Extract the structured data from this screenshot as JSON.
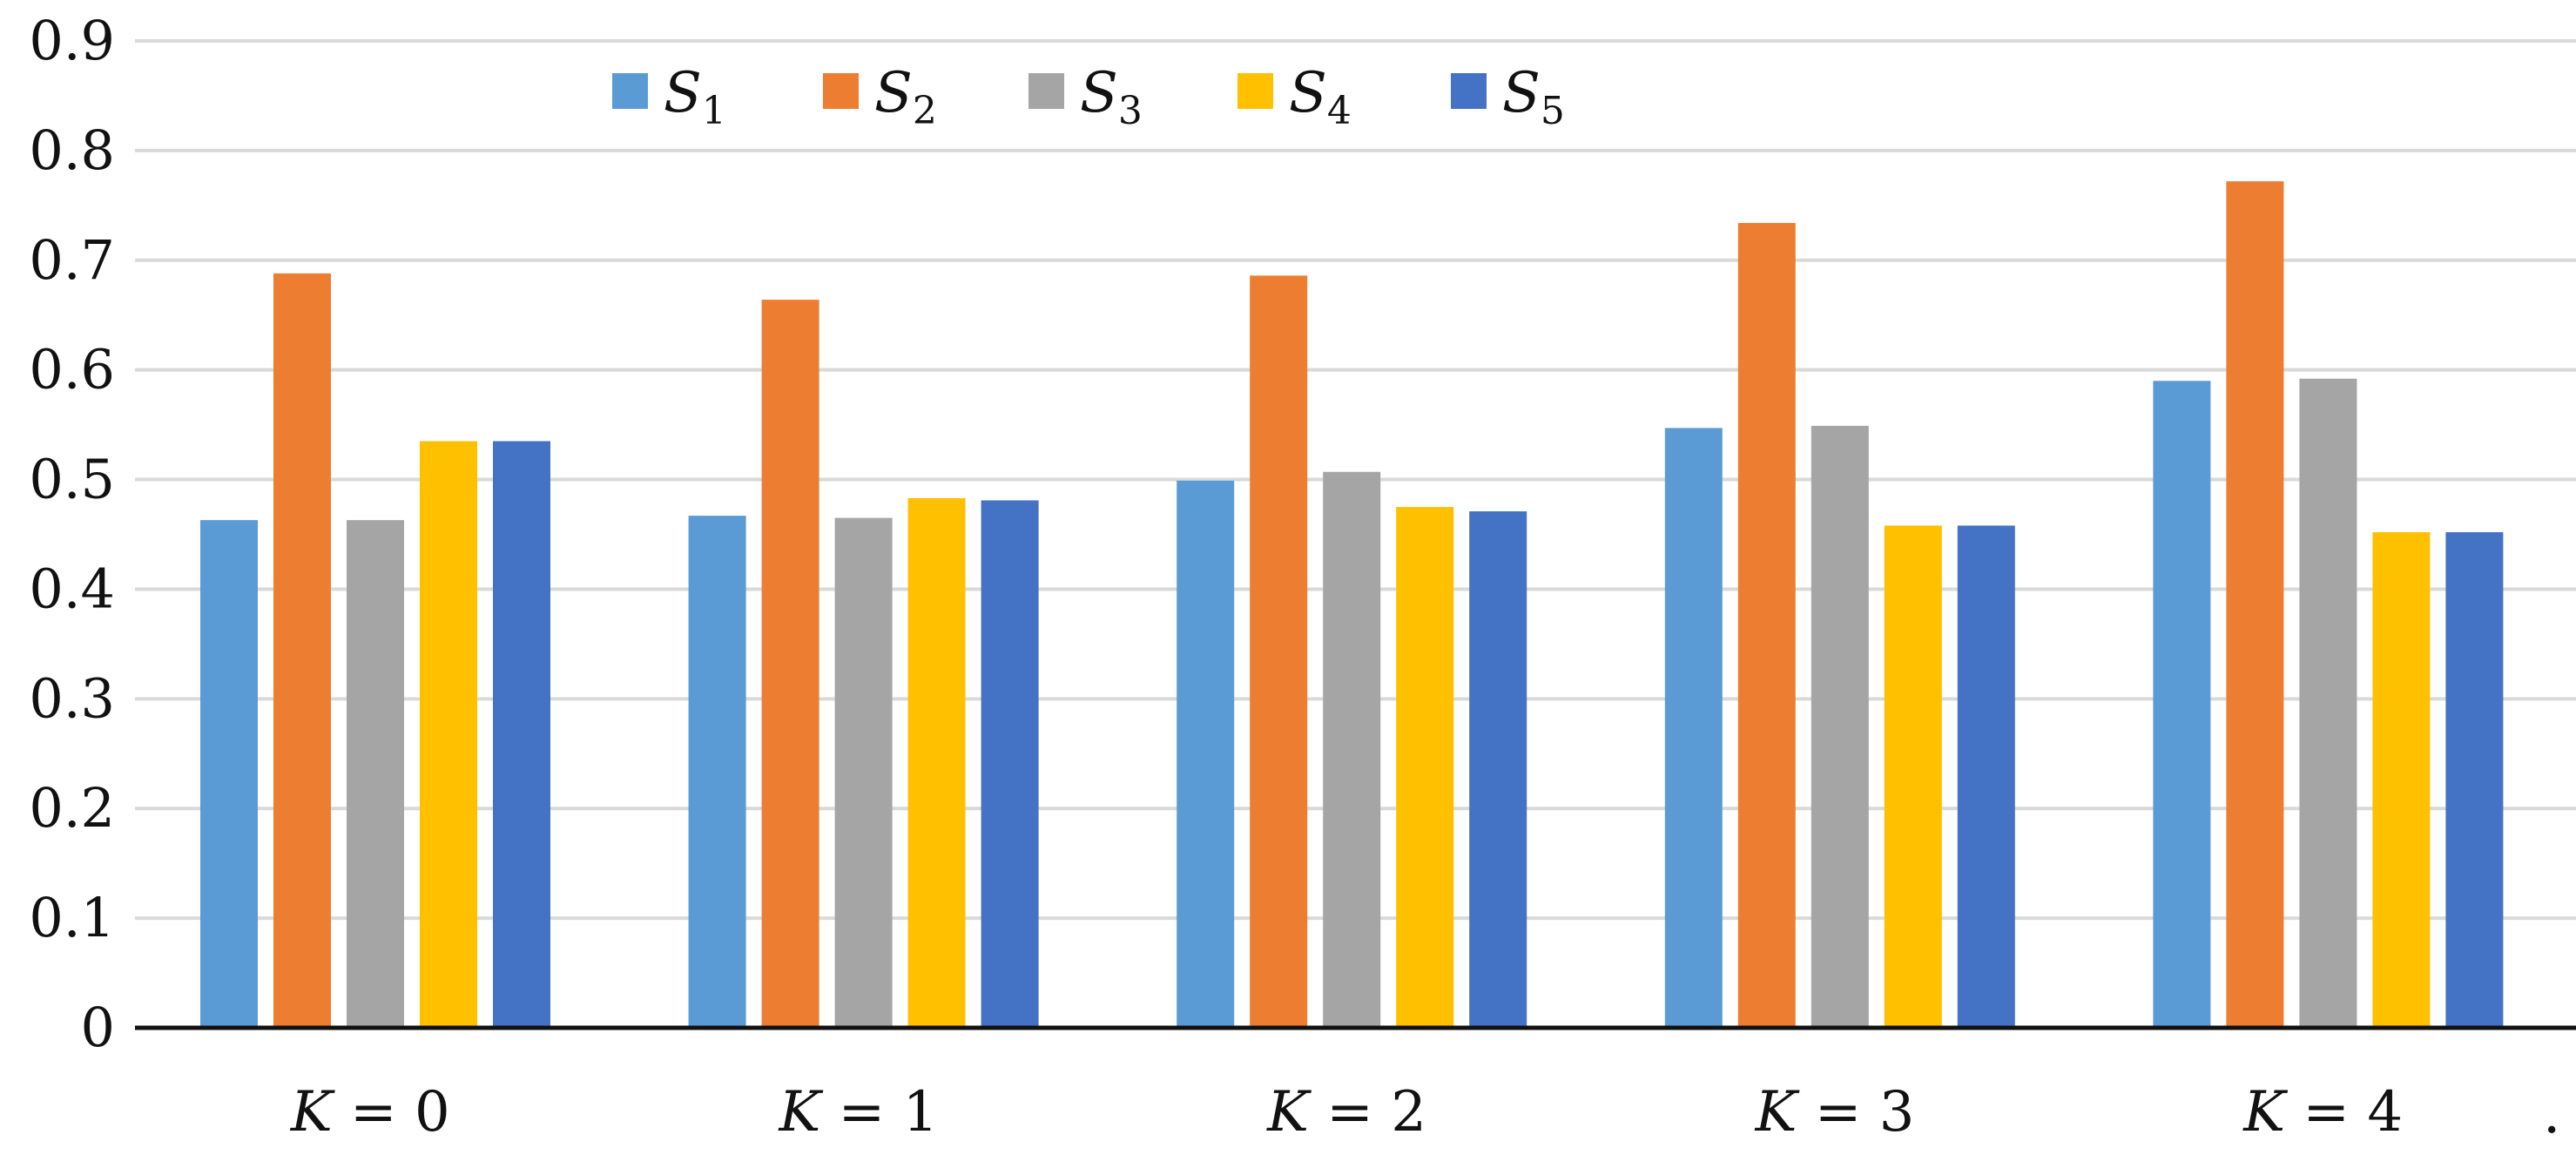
{
  "chart_data": {
    "type": "bar",
    "title": "",
    "xlabel": "",
    "ylabel": "",
    "categories": [
      {
        "var": "K",
        "eq": " = ",
        "val": "0"
      },
      {
        "var": "K",
        "eq": " = ",
        "val": "1"
      },
      {
        "var": "K",
        "eq": " = ",
        "val": "2"
      },
      {
        "var": "K",
        "eq": " = ",
        "val": "3"
      },
      {
        "var": "K",
        "eq": " = ",
        "val": "4"
      }
    ],
    "series": [
      {
        "name": "S",
        "sub": "1",
        "color": "#5B9BD5",
        "values": [
          0.463,
          0.467,
          0.499,
          0.547,
          0.59
        ]
      },
      {
        "name": "S",
        "sub": "2",
        "color": "#ED7D31",
        "values": [
          0.688,
          0.664,
          0.686,
          0.734,
          0.772
        ]
      },
      {
        "name": "S",
        "sub": "3",
        "color": "#A5A5A5",
        "values": [
          0.463,
          0.465,
          0.507,
          0.549,
          0.592
        ]
      },
      {
        "name": "S",
        "sub": "4",
        "color": "#FFC000",
        "values": [
          0.535,
          0.483,
          0.475,
          0.458,
          0.452
        ]
      },
      {
        "name": "S",
        "sub": "5",
        "color": "#4472C4",
        "values": [
          0.535,
          0.481,
          0.471,
          0.458,
          0.452
        ]
      }
    ],
    "y_ticks": [
      "0",
      "0.1",
      "0.2",
      "0.3",
      "0.4",
      "0.5",
      "0.6",
      "0.7",
      "0.8",
      "0.9"
    ],
    "ylim": [
      0,
      0.9
    ],
    "grid": true,
    "legend": "top",
    "trailing_mark": "."
  }
}
